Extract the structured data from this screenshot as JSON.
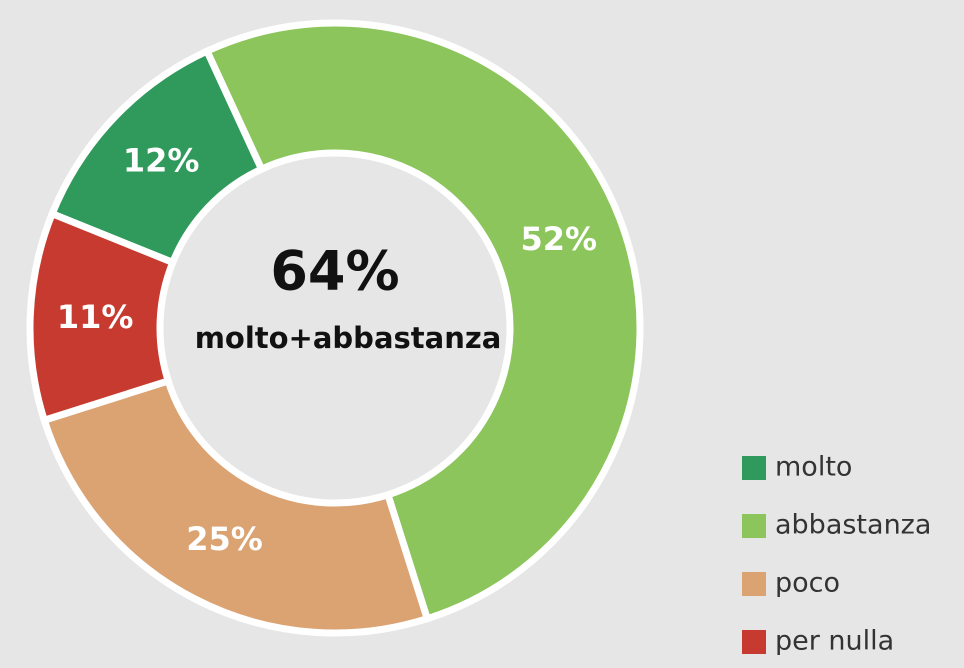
{
  "chart_data": {
    "type": "donut",
    "categories": [
      "molto",
      "abbastanza",
      "poco",
      "per nulla"
    ],
    "values": [
      12,
      52,
      25,
      11
    ],
    "value_labels": [
      "12%",
      "52%",
      "25%",
      "11%"
    ],
    "colors": [
      "#2f9a5b",
      "#8cc55b",
      "#dba272",
      "#c73a2f"
    ],
    "center_text": [
      "64%",
      "molto+abbastanza"
    ],
    "legend": "lower right"
  }
}
